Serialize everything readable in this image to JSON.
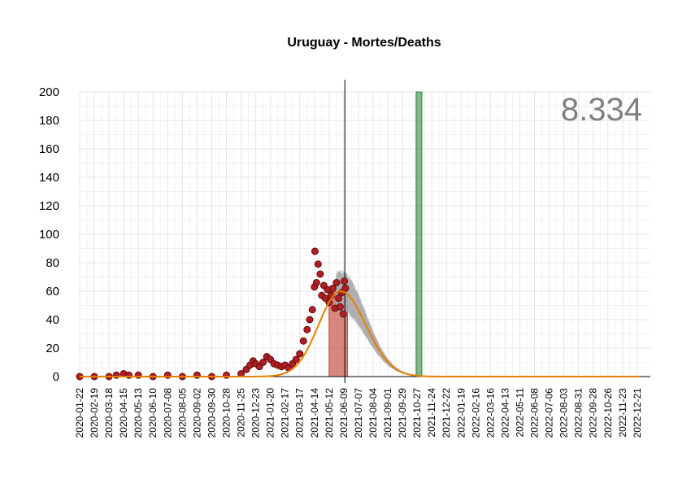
{
  "chart_data": {
    "type": "scatter",
    "title": "Uruguay - Mortes/Deaths",
    "total_label": "8.334",
    "ylim": [
      0,
      200
    ],
    "yticks": [
      0,
      20,
      40,
      60,
      80,
      100,
      120,
      140,
      160,
      180,
      200
    ],
    "x_date_range": [
      "2020-01-22",
      "2023-01-15"
    ],
    "xticks": [
      "2020-01-22",
      "2020-02-19",
      "2020-03-18",
      "2020-04-15",
      "2020-05-13",
      "2020-06-10",
      "2020-07-08",
      "2020-08-05",
      "2020-09-02",
      "2020-09-30",
      "2020-10-28",
      "2020-11-25",
      "2020-12-23",
      "2021-01-20",
      "2021-02-17",
      "2021-03-17",
      "2021-04-14",
      "2021-05-12",
      "2021-06-09",
      "2021-07-07",
      "2021-08-04",
      "2021-09-01",
      "2021-09-29",
      "2021-10-27",
      "2021-11-24",
      "2021-12-22",
      "2022-01-19",
      "2022-02-16",
      "2022-03-16",
      "2022-04-13",
      "2022-05-11",
      "2022-06-08",
      "2022-07-06",
      "2022-08-03",
      "2022-08-31",
      "2022-09-28",
      "2022-10-26",
      "2022-11-23",
      "2022-12-21"
    ],
    "grid": true,
    "vline_date": "2021-06-11",
    "highlight_bands": [
      {
        "start": "2021-05-12",
        "end": "2021-06-16",
        "color": "#c0392b",
        "height": 60
      },
      {
        "start": "2021-10-25",
        "end": "2021-11-05",
        "color": "#2e8b3e",
        "height": 200
      }
    ],
    "fit_curve": {
      "color": "#e67e00",
      "peak_date": "2021-06-03",
      "peak_value": 60,
      "sigma_left_days": 42,
      "sigma_right_days": 48
    },
    "confidence_band": {
      "color": "#a6a6a6",
      "from_date": "2021-05-25",
      "to_date": "2022-01-10",
      "relative_width": 0.22
    },
    "points": {
      "color": "#b01e23",
      "stroke": "#5e0b0b"
    },
    "observed": [
      [
        "2020-01-22",
        0
      ],
      [
        "2020-02-19",
        0
      ],
      [
        "2020-03-18",
        0
      ],
      [
        "2020-04-01",
        1
      ],
      [
        "2020-04-15",
        2
      ],
      [
        "2020-04-25",
        1
      ],
      [
        "2020-05-13",
        1
      ],
      [
        "2020-06-10",
        0
      ],
      [
        "2020-07-08",
        1
      ],
      [
        "2020-08-05",
        0
      ],
      [
        "2020-09-02",
        1
      ],
      [
        "2020-09-30",
        0
      ],
      [
        "2020-10-28",
        1
      ],
      [
        "2020-11-25",
        2
      ],
      [
        "2020-12-05",
        5
      ],
      [
        "2020-12-12",
        8
      ],
      [
        "2020-12-18",
        11
      ],
      [
        "2020-12-23",
        9
      ],
      [
        "2020-12-30",
        7
      ],
      [
        "2021-01-06",
        10
      ],
      [
        "2021-01-13",
        14
      ],
      [
        "2021-01-20",
        12
      ],
      [
        "2021-01-27",
        9
      ],
      [
        "2021-02-03",
        8
      ],
      [
        "2021-02-10",
        7
      ],
      [
        "2021-02-17",
        8
      ],
      [
        "2021-02-24",
        6
      ],
      [
        "2021-03-03",
        9
      ],
      [
        "2021-03-10",
        12
      ],
      [
        "2021-03-17",
        16
      ],
      [
        "2021-03-24",
        25
      ],
      [
        "2021-03-31",
        33
      ],
      [
        "2021-04-05",
        40
      ],
      [
        "2021-04-10",
        47
      ],
      [
        "2021-04-14",
        63
      ],
      [
        "2021-04-15",
        88
      ],
      [
        "2021-04-18",
        66
      ],
      [
        "2021-04-21",
        79
      ],
      [
        "2021-04-25",
        72
      ],
      [
        "2021-04-28",
        57
      ],
      [
        "2021-05-02",
        64
      ],
      [
        "2021-05-05",
        55
      ],
      [
        "2021-05-09",
        61
      ],
      [
        "2021-05-12",
        52
      ],
      [
        "2021-05-16",
        57
      ],
      [
        "2021-05-19",
        62
      ],
      [
        "2021-05-23",
        48
      ],
      [
        "2021-05-26",
        66
      ],
      [
        "2021-05-30",
        55
      ],
      [
        "2021-06-02",
        49
      ],
      [
        "2021-06-05",
        59
      ],
      [
        "2021-06-08",
        44
      ],
      [
        "2021-06-10",
        67
      ],
      [
        "2021-06-12",
        62
      ]
    ]
  }
}
